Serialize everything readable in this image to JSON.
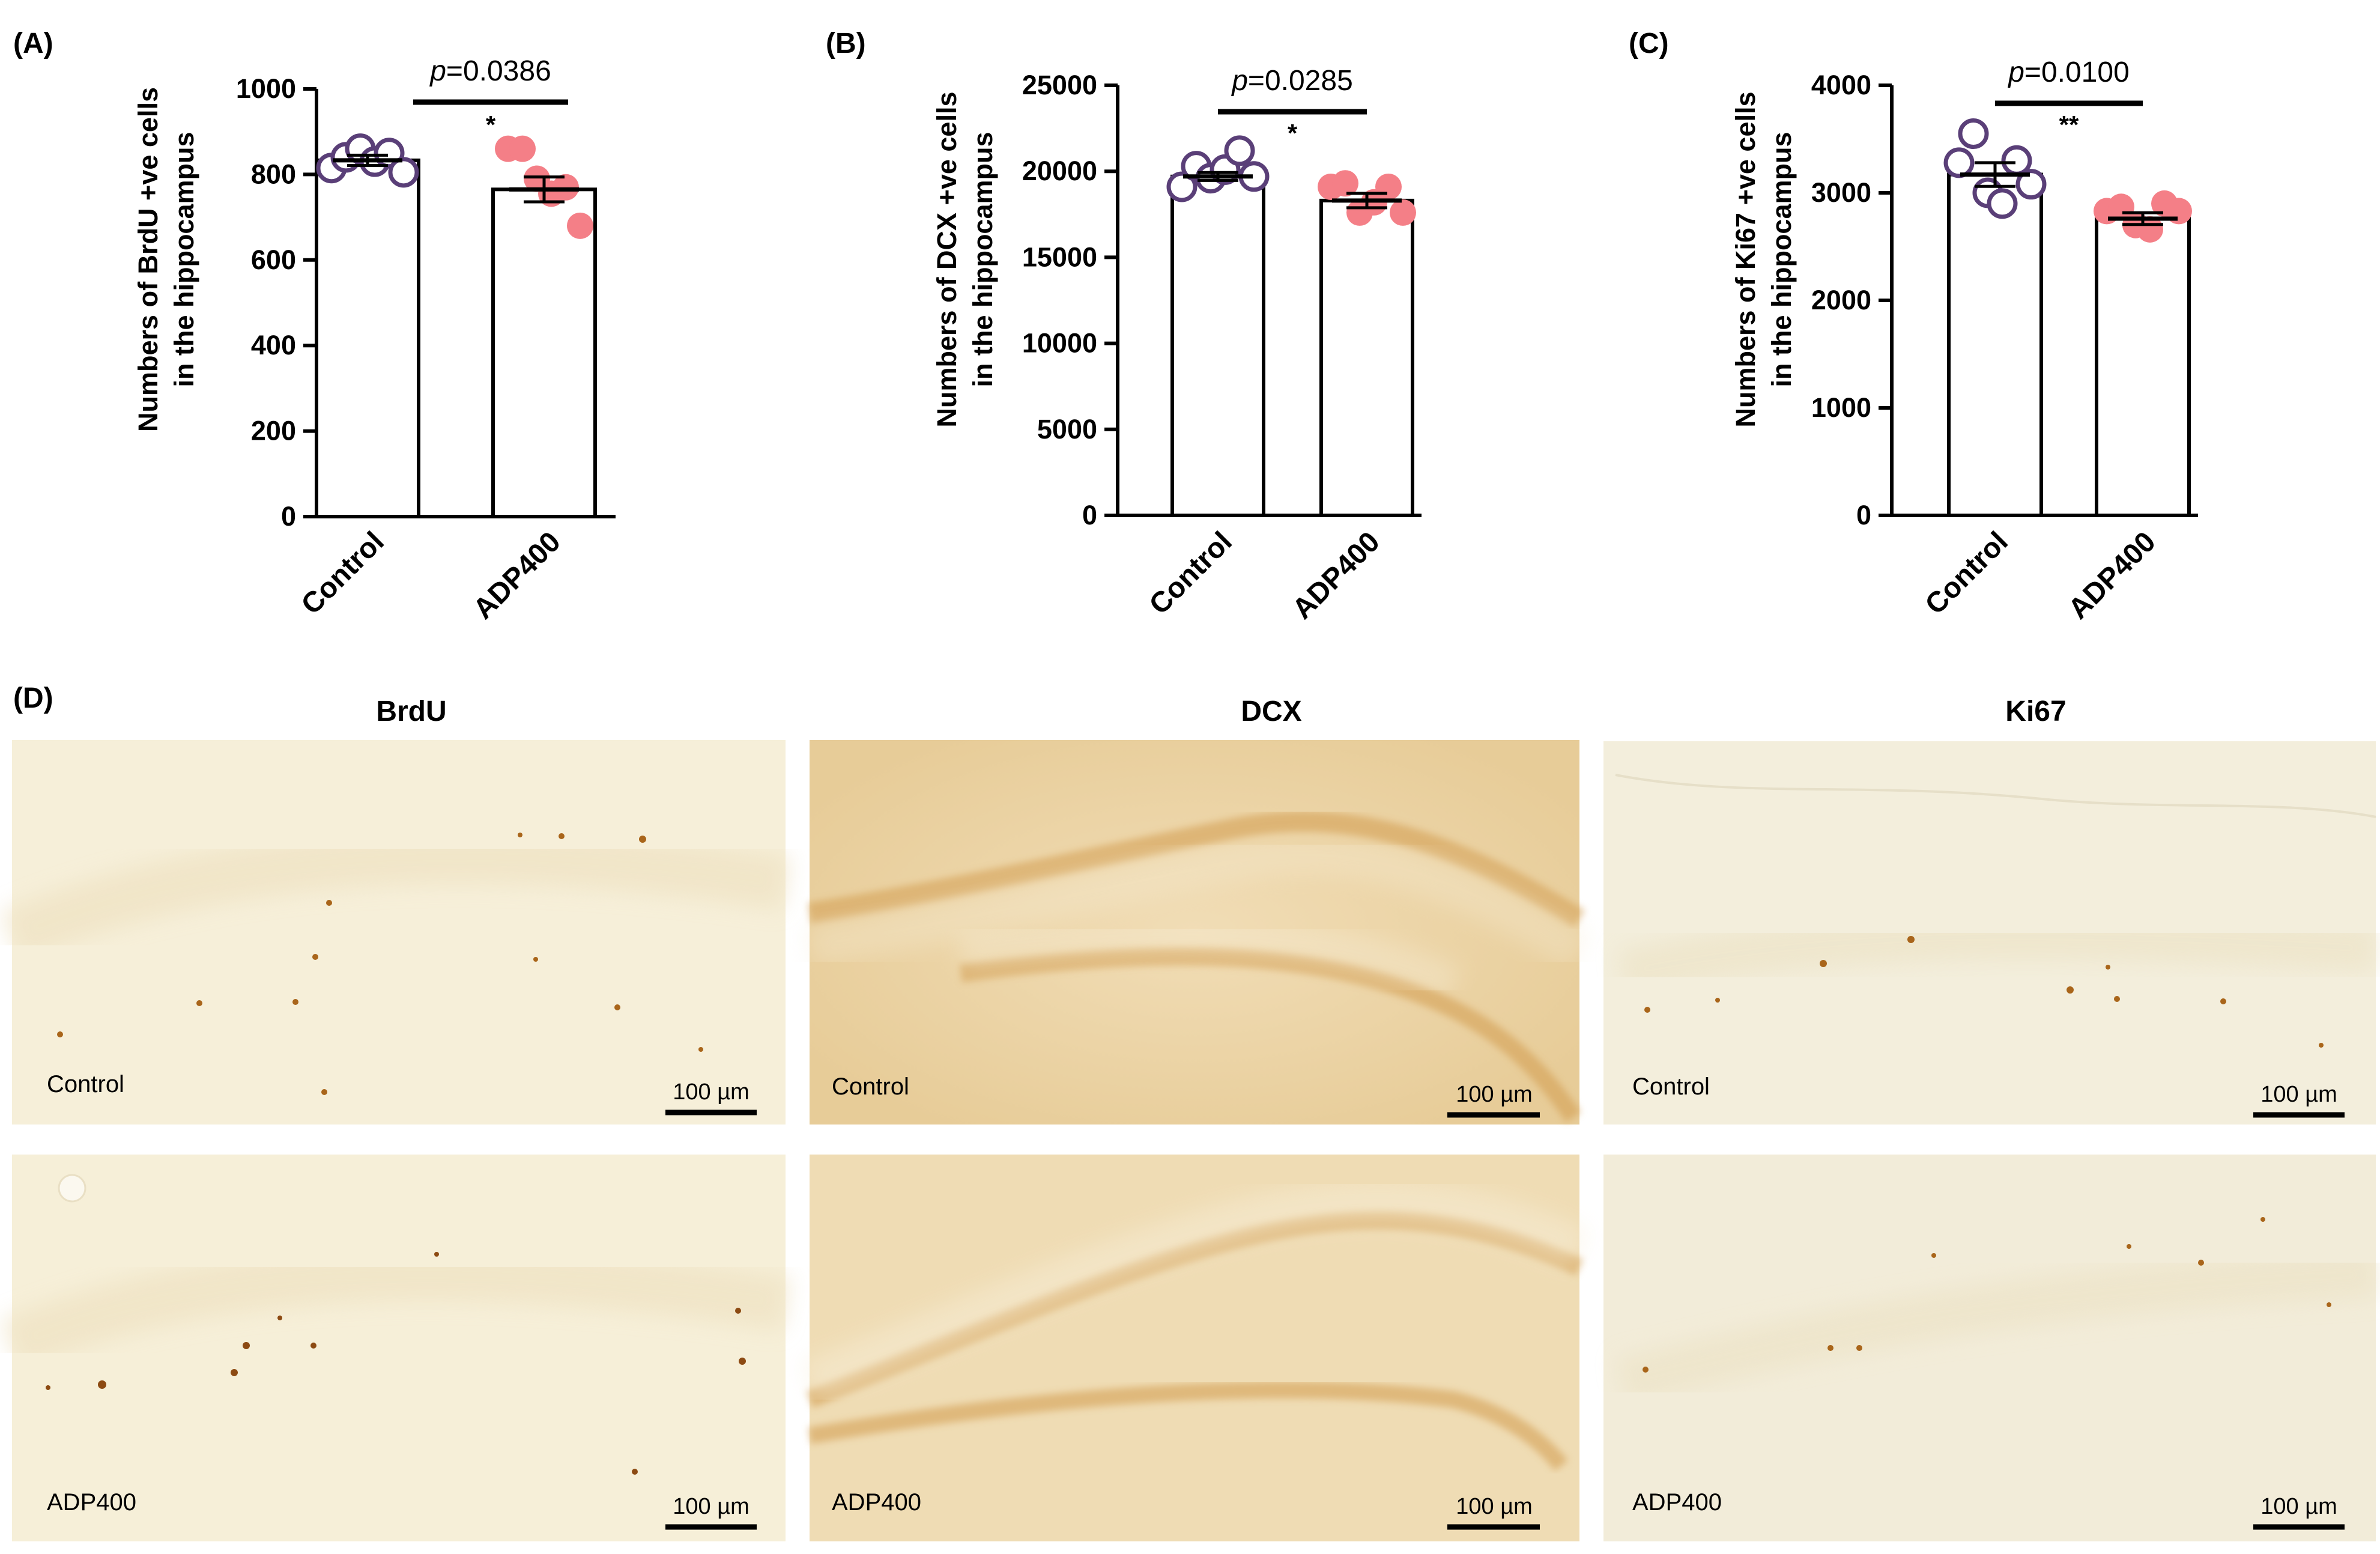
{
  "figure": {
    "panel_d": {
      "letter": "(D)"
    },
    "stain_titles": [
      "BrdU",
      "DCX",
      "Ki67"
    ],
    "row_labels": [
      "Control",
      "ADP400"
    ],
    "scale_label": "100 µm",
    "colors": {
      "control_marker": "#5a3f78",
      "adp_marker": "#f47f87",
      "bar_fill": "#ffffff",
      "tissue_brdu": "#f6efd9",
      "tissue_dcx": "#eed8ac",
      "tissue_ki67": "#f3eedc",
      "stain_brown": "#a9651a"
    }
  },
  "chart_data": [
    {
      "type": "bar",
      "panel": "(A)",
      "categories": [
        "Control",
        "ADP400"
      ],
      "values": [
        833,
        765
      ],
      "sem": [
        12,
        29
      ],
      "points": [
        [
          815,
          840,
          860,
          830,
          850,
          805
        ],
        [
          860,
          860,
          790,
          755,
          770,
          680
        ]
      ],
      "ylabel_lines": [
        "Numbers of BrdU +ve cells",
        "in the hippocampus"
      ],
      "ylim": [
        0,
        1000
      ],
      "yticks": [
        "0",
        "200",
        "400",
        "600",
        "800",
        "1000"
      ],
      "p_prefix": "p",
      "p_value": "=0.0386",
      "significance": "*"
    },
    {
      "type": "bar",
      "panel": "(B)",
      "categories": [
        "Control",
        "ADP400"
      ],
      "values": [
        19700,
        18300
      ],
      "sem": [
        230,
        420
      ],
      "points": [
        [
          19100,
          20300,
          19600,
          20100,
          21200,
          19700
        ],
        [
          19100,
          19300,
          17600,
          18200,
          19100,
          17600
        ]
      ],
      "ylabel_lines": [
        "Numbers of DCX +ve cells",
        "in the hippocampus"
      ],
      "ylim": [
        0,
        25000
      ],
      "yticks": [
        "0",
        "5000",
        "10000",
        "15000",
        "20000",
        "25000"
      ],
      "p_prefix": "p",
      "p_value": "=0.0285",
      "significance": "*"
    },
    {
      "type": "bar",
      "panel": "(C)",
      "categories": [
        "Control",
        "ADP400"
      ],
      "values": [
        3170,
        2760
      ],
      "sem": [
        110,
        55
      ],
      "points": [
        [
          3280,
          3550,
          3000,
          2900,
          3300,
          3080
        ],
        [
          2830,
          2870,
          2700,
          2660,
          2900,
          2830
        ]
      ],
      "ylabel_lines": [
        "Numbers of Ki67 +ve cells",
        "in the hippocampus"
      ],
      "ylim": [
        0,
        4000
      ],
      "yticks": [
        "0",
        "1000",
        "2000",
        "3000",
        "4000"
      ],
      "p_prefix": "p",
      "p_value": "=0.0100",
      "significance": "**"
    }
  ]
}
